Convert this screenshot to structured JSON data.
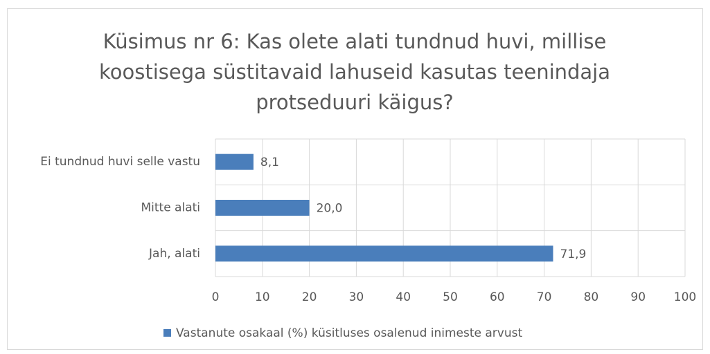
{
  "chart_data": {
    "type": "bar",
    "orientation": "horizontal",
    "title": "Küsimus nr 6: Kas olete alati tundnud huvi, millise koostisega süstitavaid lahuseid kasutas teenindaja protseduuri käigus?",
    "categories": [
      "Ei tundnud huvi selle vastu",
      "Mitte alati",
      "Jah, alati"
    ],
    "series": [
      {
        "name": "Vastanute osakaal (%) küsitluses osalenud inimeste arvust",
        "color": "#4a7ebb",
        "values": [
          8.1,
          20.0,
          71.9
        ],
        "value_labels": [
          "8,1",
          "20,0",
          "71,9"
        ]
      }
    ],
    "xlim": [
      0,
      100
    ],
    "xticks": [
      0,
      10,
      20,
      30,
      40,
      50,
      60,
      70,
      80,
      90,
      100
    ],
    "grid": true,
    "legend": "bottom"
  }
}
